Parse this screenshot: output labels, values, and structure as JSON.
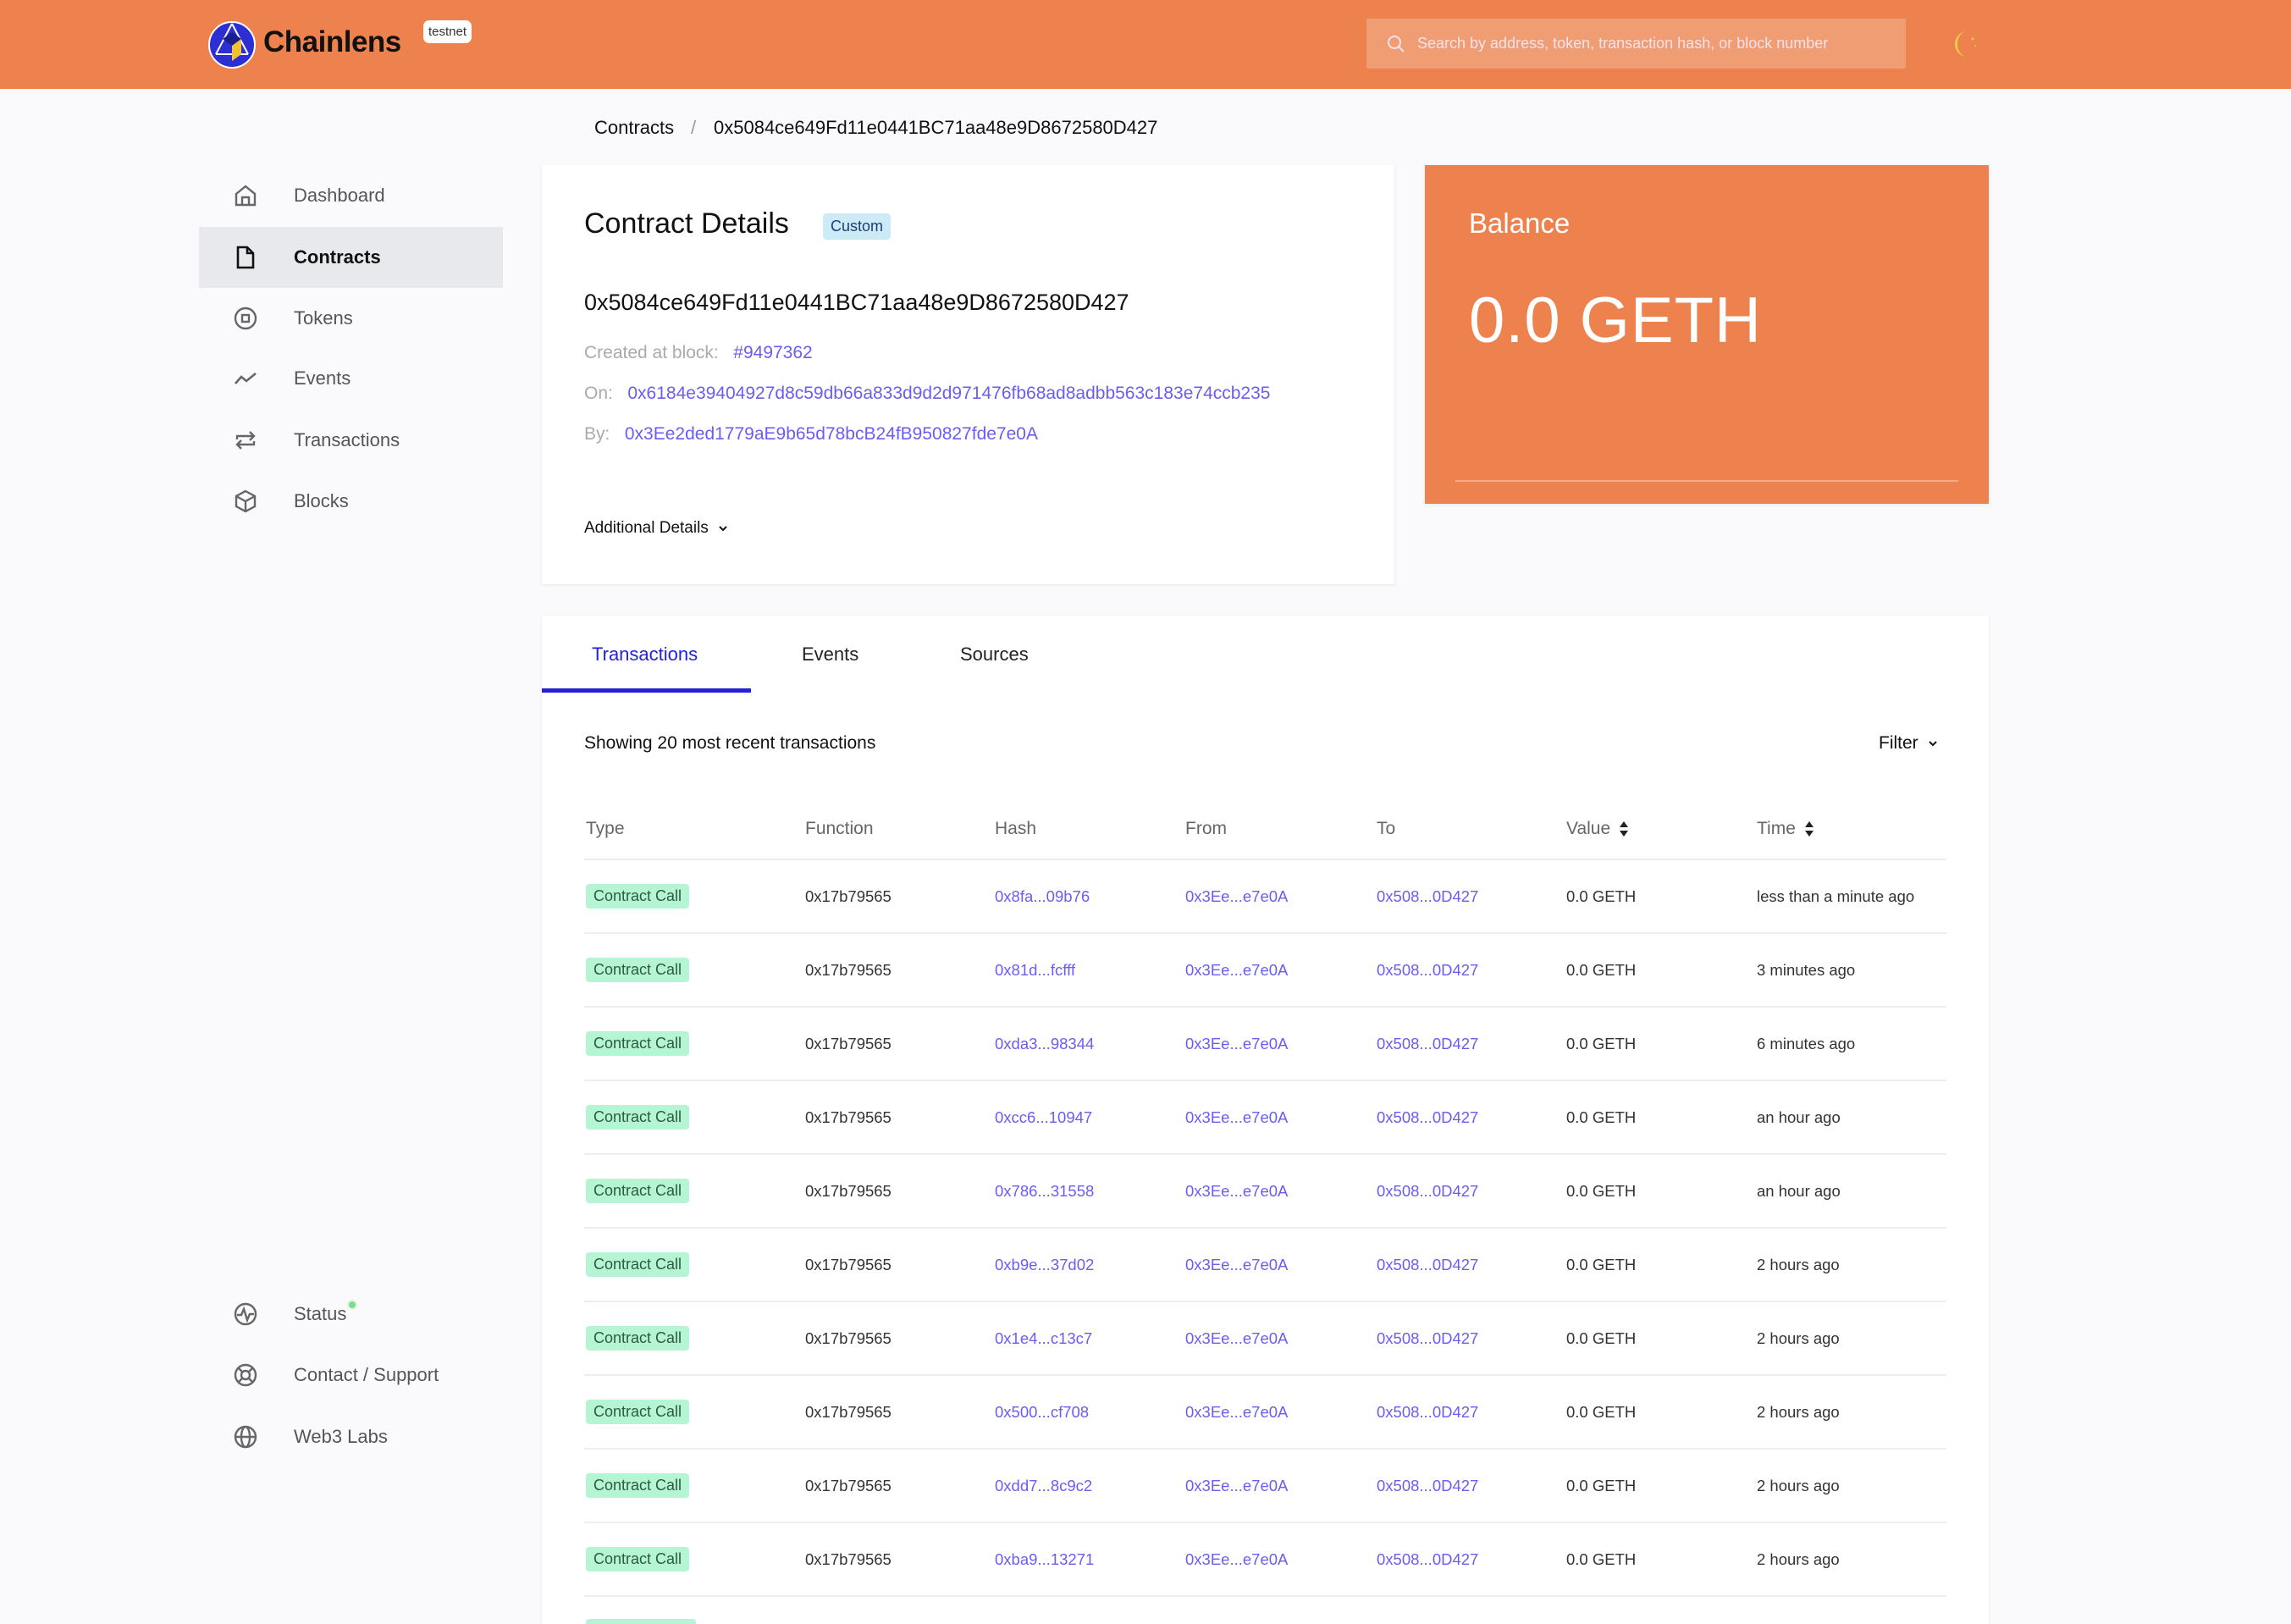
{
  "colors": {
    "brand": "#EE824E",
    "link": "#6A5DF5",
    "active_tab": "#2222D8",
    "badge_green": "#B5F5D4",
    "custom_badge": "#CDEBF7"
  },
  "header": {
    "brand": "Chainlens",
    "network_badge": "testnet",
    "search_placeholder": "Search by address, token, transaction hash, or block number",
    "theme_icon": "moon-icon"
  },
  "breadcrumb": {
    "parent": "Contracts",
    "separator": "/",
    "current": "0x5084ce649Fd11e0441BC71aa48e9D8672580D427"
  },
  "sidebar": {
    "items": [
      {
        "label": "Dashboard",
        "icon": "home-icon"
      },
      {
        "label": "Contracts",
        "icon": "document-icon",
        "active": true
      },
      {
        "label": "Tokens",
        "icon": "token-icon"
      },
      {
        "label": "Events",
        "icon": "trend-icon"
      },
      {
        "label": "Transactions",
        "icon": "swap-icon"
      },
      {
        "label": "Blocks",
        "icon": "cube-icon"
      }
    ],
    "footer": [
      {
        "label": "Status",
        "icon": "pulse-icon"
      },
      {
        "label": "Contact / Support",
        "icon": "lifebuoy-icon"
      },
      {
        "label": "Web3 Labs",
        "icon": "globe-icon"
      }
    ]
  },
  "details": {
    "title": "Contract Details",
    "badge": "Custom",
    "address": "0x5084ce649Fd11e0441BC71aa48e9D8672580D427",
    "created_label": "Created at block:",
    "created_block": "#9497362",
    "on_label": "On:",
    "on_tx": "0x6184e39404927d8c59db66a833d9d2d971476fb68ad8adbb563c183e74ccb235",
    "by_label": "By:",
    "by_address": "0x3Ee2ded1779aE9b65d78bcB24fB950827fde7e0A",
    "additional": "Additional Details"
  },
  "balance": {
    "title": "Balance",
    "value": "0.0 GETH"
  },
  "tabs": [
    {
      "label": "Transactions",
      "active": true
    },
    {
      "label": "Events"
    },
    {
      "label": "Sources"
    }
  ],
  "transactions": {
    "summary": "Showing 20 most recent transactions",
    "filter": "Filter",
    "columns": [
      "Type",
      "Function",
      "Hash",
      "From",
      "To",
      "Value",
      "Time"
    ],
    "rows": [
      {
        "type": "Contract Call",
        "function": "0x17b79565",
        "hash": "0x8fa...09b76",
        "from": "0x3Ee...e7e0A",
        "to": "0x508...0D427",
        "value": "0.0 GETH",
        "time": "less than a minute ago"
      },
      {
        "type": "Contract Call",
        "function": "0x17b79565",
        "hash": "0x81d...fcfff",
        "from": "0x3Ee...e7e0A",
        "to": "0x508...0D427",
        "value": "0.0 GETH",
        "time": "3 minutes ago"
      },
      {
        "type": "Contract Call",
        "function": "0x17b79565",
        "hash": "0xda3...98344",
        "from": "0x3Ee...e7e0A",
        "to": "0x508...0D427",
        "value": "0.0 GETH",
        "time": "6 minutes ago"
      },
      {
        "type": "Contract Call",
        "function": "0x17b79565",
        "hash": "0xcc6...10947",
        "from": "0x3Ee...e7e0A",
        "to": "0x508...0D427",
        "value": "0.0 GETH",
        "time": "an hour ago"
      },
      {
        "type": "Contract Call",
        "function": "0x17b79565",
        "hash": "0x786...31558",
        "from": "0x3Ee...e7e0A",
        "to": "0x508...0D427",
        "value": "0.0 GETH",
        "time": "an hour ago"
      },
      {
        "type": "Contract Call",
        "function": "0x17b79565",
        "hash": "0xb9e...37d02",
        "from": "0x3Ee...e7e0A",
        "to": "0x508...0D427",
        "value": "0.0 GETH",
        "time": "2 hours ago"
      },
      {
        "type": "Contract Call",
        "function": "0x17b79565",
        "hash": "0x1e4...c13c7",
        "from": "0x3Ee...e7e0A",
        "to": "0x508...0D427",
        "value": "0.0 GETH",
        "time": "2 hours ago"
      },
      {
        "type": "Contract Call",
        "function": "0x17b79565",
        "hash": "0x500...cf708",
        "from": "0x3Ee...e7e0A",
        "to": "0x508...0D427",
        "value": "0.0 GETH",
        "time": "2 hours ago"
      },
      {
        "type": "Contract Call",
        "function": "0x17b79565",
        "hash": "0xdd7...8c9c2",
        "from": "0x3Ee...e7e0A",
        "to": "0x508...0D427",
        "value": "0.0 GETH",
        "time": "2 hours ago"
      },
      {
        "type": "Contract Call",
        "function": "0x17b79565",
        "hash": "0xba9...13271",
        "from": "0x3Ee...e7e0A",
        "to": "0x508...0D427",
        "value": "0.0 GETH",
        "time": "2 hours ago"
      }
    ]
  }
}
